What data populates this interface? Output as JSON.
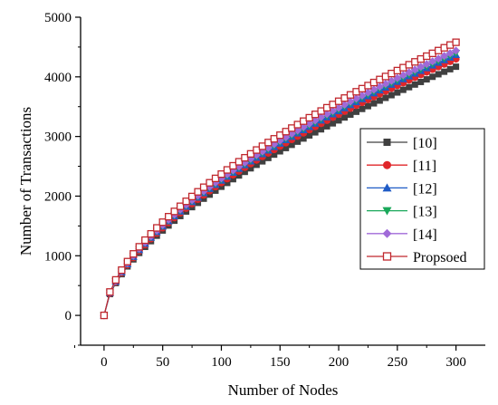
{
  "chart_data": {
    "type": "line",
    "title": "",
    "xlabel": "Number of Nodes",
    "ylabel": "Number of Transactions",
    "xlim": [
      -20,
      325
    ],
    "ylim": [
      -500,
      5000
    ],
    "xticks": [
      0,
      50,
      100,
      150,
      200,
      250,
      300
    ],
    "yticks": [
      0,
      1000,
      2000,
      3000,
      4000,
      5000
    ],
    "legend_position": "center-right",
    "grid": false,
    "x_step": 5,
    "x_start": 0,
    "x_end": 300,
    "series": [
      {
        "name": "[10]",
        "color": "#404040",
        "marker": "square-filled",
        "final_value": 4170
      },
      {
        "name": "[11]",
        "color": "#e0262a",
        "marker": "circle-filled",
        "final_value": 4300
      },
      {
        "name": "[12]",
        "color": "#1f5bc6",
        "marker": "triangle-up-filled",
        "final_value": 4370
      },
      {
        "name": "[13]",
        "color": "#1aa85a",
        "marker": "triangle-down-filled",
        "final_value": 4400
      },
      {
        "name": "[14]",
        "color": "#a06ad8",
        "marker": "diamond-filled",
        "final_value": 4440
      },
      {
        "name": "Propsoed",
        "color": "#c0272d",
        "marker": "square-open",
        "final_value": 4580
      }
    ]
  }
}
